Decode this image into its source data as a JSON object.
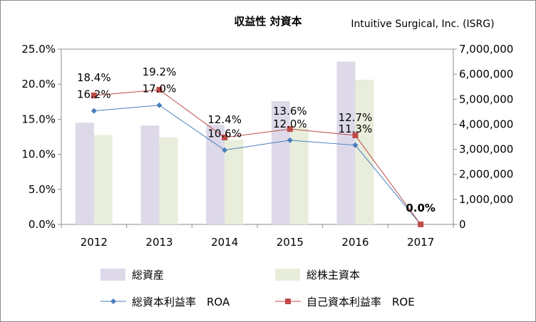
{
  "chart_data": {
    "type": "bar",
    "title": "収益性 対資本",
    "subtitle": "Intuitive Surgical, Inc. (ISRG)",
    "categories": [
      "2012",
      "2013",
      "2014",
      "2015",
      "2016",
      "2017"
    ],
    "y_left": {
      "lim": [
        0,
        25
      ],
      "ticks": [
        0,
        5,
        10,
        15,
        20,
        25
      ],
      "tick_labels": [
        "0.0%",
        "5.0%",
        "10.0%",
        "15.0%",
        "20.0%",
        "25.0%"
      ]
    },
    "y_right": {
      "lim": [
        0,
        7000000
      ],
      "ticks": [
        0,
        1000000,
        2000000,
        3000000,
        4000000,
        5000000,
        6000000,
        7000000
      ],
      "tick_labels": [
        "0",
        "1,000,000",
        "2,000,000",
        "3,000,000",
        "4,000,000",
        "5,000,000",
        "6,000,000",
        "7,000,000"
      ]
    },
    "bar_series": [
      {
        "name": "総資産",
        "axis": "right",
        "color": "#ddd9e9",
        "values": [
          4060000,
          3950000,
          3980000,
          4920000,
          6500000,
          0
        ]
      },
      {
        "name": "総株主資本",
        "axis": "right",
        "color": "#e9eedc",
        "values": [
          3570000,
          3480000,
          3380000,
          3900000,
          5780000,
          0
        ]
      }
    ],
    "line_series": [
      {
        "name": "総資本利益率　ROA",
        "axis": "left",
        "color": "#4a7ebb",
        "marker": "diamond",
        "values": [
          16.2,
          17.0,
          10.6,
          12.0,
          11.3,
          0.0
        ],
        "labels": [
          "16.2%",
          "17.0%",
          "10.6%",
          "12.0%",
          "11.3%",
          ""
        ]
      },
      {
        "name": "自己資本利益率　ROE",
        "axis": "left",
        "color": "#be4b48",
        "marker": "square",
        "values": [
          18.4,
          19.2,
          12.4,
          13.6,
          12.7,
          0.0
        ],
        "labels": [
          "18.4%",
          "19.2%",
          "12.4%",
          "13.6%",
          "12.7%",
          "0.0%"
        ]
      }
    ],
    "legend_position": "bottom",
    "grid": false
  }
}
